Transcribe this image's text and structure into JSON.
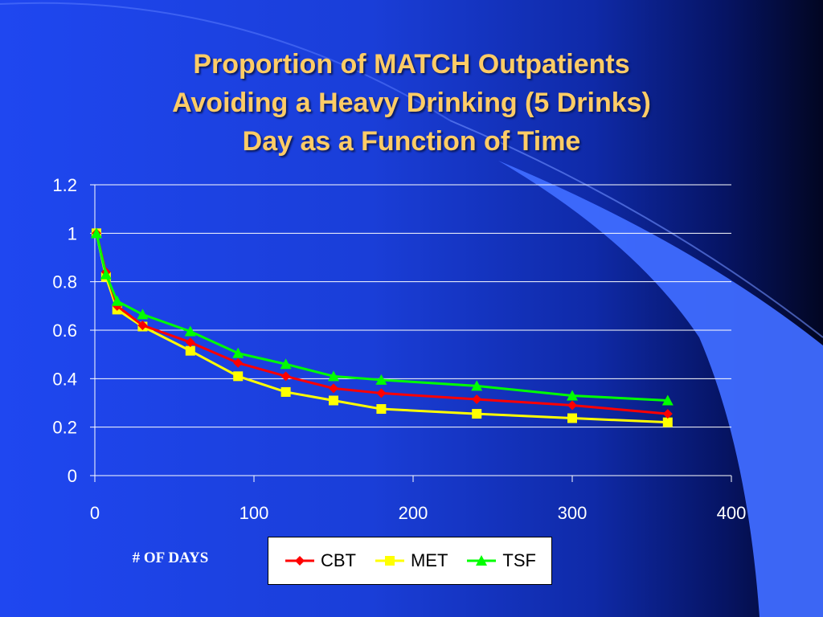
{
  "title_lines": [
    "Proportion of MATCH Outpatients",
    "Avoiding a Heavy Drinking (5 Drinks)",
    "Day as a Function of Time"
  ],
  "colors": {
    "title": "#ffcc66",
    "cbt": "#ff0000",
    "met": "#ffff00",
    "tsf": "#00ff00",
    "axis": "#ffffff"
  },
  "chart_data": {
    "type": "line",
    "title": "Proportion of MATCH Outpatients Avoiding a Heavy Drinking (5 Drinks) Day as a Function of Time",
    "xlabel": "# OF DAYS",
    "ylabel": "",
    "xlim": [
      0,
      400
    ],
    "ylim": [
      0,
      1.2
    ],
    "x_ticks": [
      "0",
      "100",
      "200",
      "300",
      "400"
    ],
    "y_ticks": [
      "0",
      "0.2",
      "0.4",
      "0.6",
      "0.8",
      "1",
      "1.2"
    ],
    "grid": "horizontal",
    "legend_position": "bottom",
    "series": [
      {
        "name": "CBT",
        "marker": "diamond",
        "color": "#ff0000",
        "x": [
          1,
          7,
          14,
          30,
          60,
          90,
          120,
          150,
          180,
          240,
          300,
          360
        ],
        "y": [
          1.0,
          0.84,
          0.7,
          0.62,
          0.55,
          0.465,
          0.41,
          0.36,
          0.34,
          0.315,
          0.29,
          0.255
        ]
      },
      {
        "name": "MET",
        "marker": "square",
        "color": "#ffff00",
        "x": [
          1,
          7,
          14,
          30,
          60,
          90,
          120,
          150,
          180,
          240,
          300,
          360
        ],
        "y": [
          1.0,
          0.82,
          0.685,
          0.615,
          0.515,
          0.41,
          0.345,
          0.31,
          0.275,
          0.255,
          0.237,
          0.22
        ]
      },
      {
        "name": "TSF",
        "marker": "triangle",
        "color": "#00ff00",
        "x": [
          1,
          7,
          14,
          30,
          60,
          90,
          120,
          150,
          180,
          240,
          300,
          360
        ],
        "y": [
          1.0,
          0.83,
          0.72,
          0.665,
          0.595,
          0.505,
          0.46,
          0.41,
          0.395,
          0.37,
          0.33,
          0.31
        ]
      }
    ]
  }
}
